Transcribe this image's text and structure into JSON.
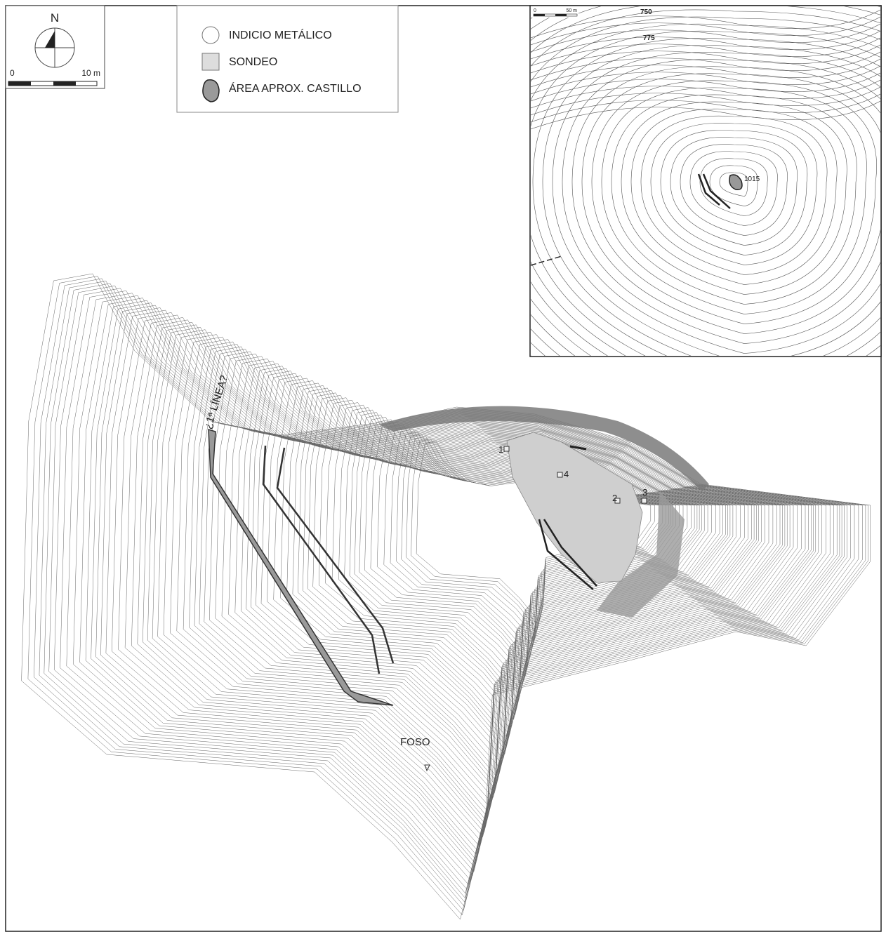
{
  "north_arrow": {
    "label": "N"
  },
  "scale_bar": {
    "start": "0",
    "end": "10 m"
  },
  "legend": {
    "items": [
      "INDICIO METÁLICO",
      "SONDEO",
      "ÁREA APROX. CASTILLO"
    ]
  },
  "inset": {
    "scale_start": "0",
    "scale_end": "50 m",
    "contours": [
      "750",
      "775"
    ],
    "summit": "1015"
  },
  "map": {
    "wall_label": "¿1ª LÍNEA?",
    "moat_label": "FOSO",
    "soundings": [
      "1",
      "2",
      "3",
      "4"
    ]
  }
}
